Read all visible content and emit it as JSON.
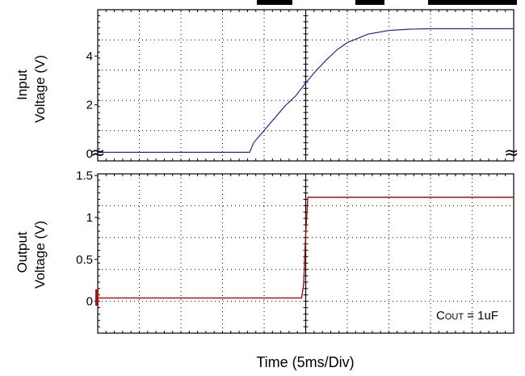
{
  "chart_data": [
    {
      "type": "line",
      "panel": "input",
      "ylabel_line1": "Input",
      "ylabel_line2": "Voltage (V)",
      "yticks": [
        "0",
        "2",
        "4"
      ],
      "tick_values": [
        0,
        2,
        4
      ],
      "ylim": [
        -0.3,
        5.9
      ],
      "x_divisions": 10,
      "series": [
        {
          "color": "#1f2f8a",
          "x_div": [
            0,
            3,
            5,
            7.3,
            7.5,
            7.6,
            8,
            8.5,
            9,
            9.5,
            10,
            10.5,
            11,
            11.5,
            12,
            13,
            14,
            15,
            16,
            17,
            18,
            19,
            20
          ],
          "values": [
            0.05,
            0.05,
            0.05,
            0.05,
            0.45,
            0.55,
            0.95,
            1.45,
            1.95,
            2.35,
            2.9,
            3.4,
            3.85,
            4.25,
            4.55,
            4.9,
            5.05,
            5.1,
            5.12,
            5.12,
            5.12,
            5.12,
            5.12
          ]
        }
      ]
    },
    {
      "type": "line",
      "panel": "output",
      "ylabel_line1": "Output",
      "ylabel_line2": "Voltage (V)",
      "yticks": [
        "0",
        "0.5",
        "1",
        "1.5"
      ],
      "tick_values": [
        0,
        0.5,
        1,
        1.5
      ],
      "ylim": [
        -0.38,
        1.52
      ],
      "x_divisions": 10,
      "annotation": "C",
      "annotation_sub": "OUT",
      "annotation_rest": " = 1uF",
      "series": [
        {
          "color": "#a31616",
          "x_div": [
            0,
            9.8,
            9.9,
            10,
            10.1,
            20
          ],
          "values": [
            0.04,
            0.04,
            0.2,
            0.8,
            1.24,
            1.24
          ]
        }
      ]
    }
  ],
  "xlabel": "Time  (5ms/Div)"
}
